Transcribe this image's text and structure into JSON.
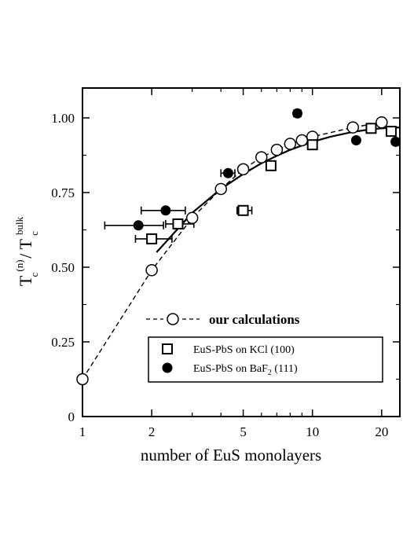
{
  "chart_data": {
    "type": "scatter",
    "x_scale": "log",
    "xlim": [
      1,
      24
    ],
    "ylim": [
      0,
      1.1
    ],
    "xlabel": "number of EuS monolayers",
    "ylabel": {
      "a_main": "T",
      "a_sub": "c",
      "a_sup": "(n)",
      "slash": " / ",
      "b_main": "T",
      "b_sub": "c",
      "b_sup": "bulk"
    },
    "x_ticks": [
      {
        "value": 1,
        "label": "1"
      },
      {
        "value": 2,
        "label": "2"
      },
      {
        "value": 5,
        "label": "5"
      },
      {
        "value": 10,
        "label": "10"
      },
      {
        "value": 20,
        "label": "20"
      }
    ],
    "y_ticks": [
      {
        "value": 0,
        "label": "0"
      },
      {
        "value": 0.25,
        "label": "0.25"
      },
      {
        "value": 0.5,
        "label": "0.50"
      },
      {
        "value": 0.75,
        "label": "0.75"
      },
      {
        "value": 1.0,
        "label": "1.00"
      }
    ],
    "grid": false,
    "series": [
      {
        "name": "our calculations",
        "marker": "open-circle",
        "line": "dashed",
        "x": [
          1,
          2,
          3,
          4,
          5,
          6,
          7,
          8,
          9,
          10,
          15,
          20
        ],
        "y": [
          0.125,
          0.49,
          0.665,
          0.762,
          0.828,
          0.868,
          0.893,
          0.913,
          0.925,
          0.937,
          0.968,
          0.985
        ]
      },
      {
        "name": "EuS-PbS on KCl (100)",
        "marker": "open-square",
        "points": [
          {
            "x": 2.0,
            "y": 0.595,
            "xerr": [
              0.3,
              0.45
            ]
          },
          {
            "x": 2.6,
            "y": 0.645,
            "xerr": [
              0.3,
              0.45
            ]
          },
          {
            "x": 5.0,
            "y": 0.69,
            "xerr": [
              0.3,
              0.45
            ]
          },
          {
            "x": 6.6,
            "y": 0.84
          },
          {
            "x": 10.0,
            "y": 0.91
          },
          {
            "x": 18.0,
            "y": 0.965
          },
          {
            "x": 22.0,
            "y": 0.955
          }
        ]
      },
      {
        "name": "EuS-PbS on BaF",
        "name_sub": "2",
        "name_rest": " (111)",
        "marker": "filled-circle",
        "points": [
          {
            "x": 1.75,
            "y": 0.64,
            "xerr": [
              0.5,
              0.5
            ]
          },
          {
            "x": 2.3,
            "y": 0.69,
            "xerr": [
              0.5,
              0.5
            ]
          },
          {
            "x": 4.3,
            "y": 0.815,
            "xerr": [
              0.3,
              0.3
            ]
          },
          {
            "x": 8.6,
            "y": 1.015,
            "xerr": [
              0.3,
              0.3
            ]
          },
          {
            "x": 15.5,
            "y": 0.925
          },
          {
            "x": 23.0,
            "y": 0.92
          }
        ]
      },
      {
        "name": "",
        "marker": "none",
        "line": "solid",
        "x": [
          2.1,
          3,
          4,
          5,
          6,
          7,
          8,
          10,
          12,
          15,
          18,
          20,
          24
        ],
        "y": [
          0.55,
          0.682,
          0.762,
          0.812,
          0.848,
          0.873,
          0.893,
          0.92,
          0.937,
          0.953,
          0.962,
          0.965,
          0.968
        ]
      }
    ],
    "legend_placement": "bottom-right"
  }
}
